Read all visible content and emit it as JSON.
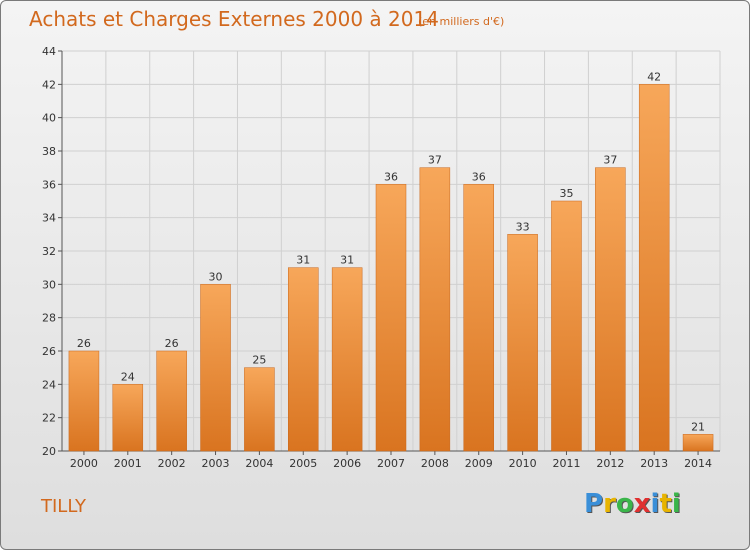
{
  "title": "Achats et Charges Externes 2000 à 2014",
  "unit_note": "(en milliers d'€)",
  "place": "TILLY",
  "logo": {
    "text": "Proxiti",
    "letters": [
      {
        "ch": "P",
        "color": "#3a8fd8"
      },
      {
        "ch": "r",
        "color": "#e8b400"
      },
      {
        "ch": "o",
        "color": "#3ab54a"
      },
      {
        "ch": "x",
        "color": "#e03030"
      },
      {
        "ch": "i",
        "color": "#3a8fd8"
      },
      {
        "ch": "t",
        "color": "#e8b400"
      },
      {
        "ch": "i",
        "color": "#3ab54a"
      }
    ]
  },
  "colors": {
    "bar_top": "#f7a75a",
    "bar_bottom": "#d97420",
    "accent": "#d2691e"
  },
  "chart_data": {
    "type": "bar",
    "title": "Achats et Charges Externes 2000 à 2014",
    "subtitle": "(en milliers d'€)",
    "categories": [
      "2000",
      "2001",
      "2002",
      "2003",
      "2004",
      "2005",
      "2006",
      "2007",
      "2008",
      "2009",
      "2010",
      "2011",
      "2012",
      "2013",
      "2014"
    ],
    "values": [
      26,
      24,
      26,
      30,
      25,
      31,
      31,
      36,
      37,
      36,
      33,
      35,
      37,
      42,
      21
    ],
    "ylim": [
      20,
      44
    ],
    "yticks": [
      20,
      22,
      24,
      26,
      28,
      30,
      32,
      34,
      36,
      38,
      40,
      42,
      44
    ],
    "grid": true,
    "xlabel": "",
    "ylabel": ""
  }
}
